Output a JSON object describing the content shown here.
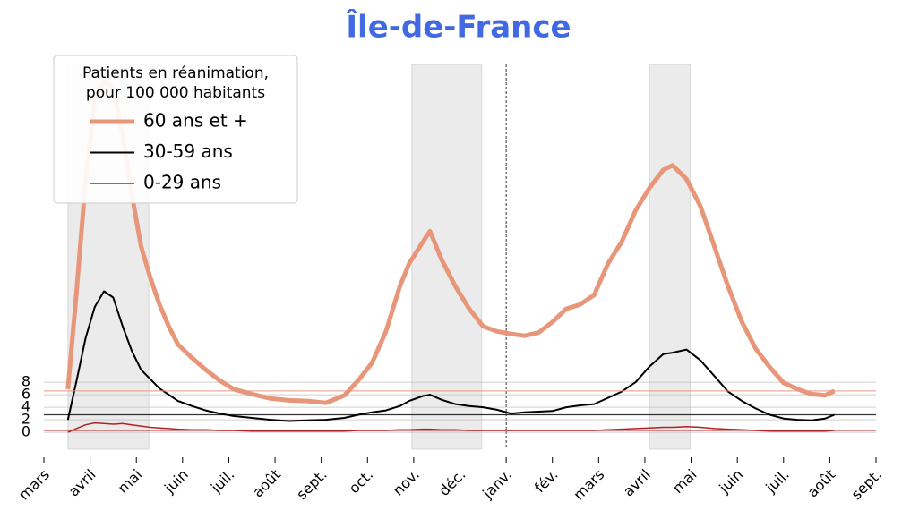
{
  "chart_data": {
    "type": "line",
    "title": "Île-de-France",
    "legend_title": [
      "Patients en réanimation,",
      "pour 100 000 habitants"
    ],
    "legend_position": "upper left",
    "x": [
      0.52,
      0.7,
      0.9,
      1.1,
      1.3,
      1.5,
      1.7,
      1.9,
      2.1,
      2.3,
      2.5,
      2.7,
      2.9,
      3.2,
      3.5,
      3.8,
      4.1,
      4.5,
      4.9,
      5.3,
      5.7,
      6.1,
      6.5,
      6.8,
      7.1,
      7.4,
      7.7,
      7.9,
      8.2,
      8.35,
      8.6,
      8.9,
      9.2,
      9.5,
      9.8,
      10.1,
      10.4,
      10.7,
      11.0,
      11.3,
      11.6,
      11.9,
      12.2,
      12.5,
      12.8,
      13.1,
      13.4,
      13.6,
      13.9,
      14.2,
      14.5,
      14.8,
      15.1,
      15.4,
      15.7,
      16.0,
      16.3,
      16.6,
      16.9,
      17.1
    ],
    "series": [
      {
        "name": "60 ans et +",
        "color": "#e8967a",
        "width": 5,
        "values": [
          6.9,
          21.9,
          40,
          53,
          56,
          55,
          47.6,
          38,
          29.7,
          24.7,
          20.4,
          16.9,
          14,
          11.9,
          10,
          8.3,
          6.9,
          6.1,
          5.4,
          5.1,
          5,
          4.7,
          5.9,
          8.3,
          11.1,
          16.1,
          23.3,
          26.9,
          30.4,
          32.1,
          27.6,
          23.3,
          19.7,
          16.9,
          16.1,
          15.7,
          15.4,
          15.9,
          17.6,
          19.7,
          20.4,
          21.9,
          26.9,
          30.4,
          35.4,
          39,
          41.9,
          42.6,
          40.4,
          36.1,
          29.7,
          23.3,
          17.6,
          13.3,
          10.4,
          7.9,
          6.9,
          6.1,
          5.9,
          6.6
        ]
      },
      {
        "name": "30-59 ans",
        "color": "#000000",
        "width": 2,
        "values": [
          2,
          8,
          15,
          20,
          22.5,
          21.5,
          17,
          13,
          10,
          8.5,
          7,
          6,
          5,
          4.2,
          3.5,
          3,
          2.6,
          2.3,
          2,
          1.8,
          1.9,
          2,
          2.3,
          2.8,
          3.2,
          3.5,
          4.2,
          5,
          5.8,
          6,
          5.2,
          4.5,
          4.2,
          4,
          3.6,
          3,
          3.2,
          3.3,
          3.4,
          4,
          4.3,
          4.5,
          5.5,
          6.5,
          8,
          10.5,
          12.5,
          12.7,
          13.2,
          11.5,
          9,
          6.5,
          5,
          3.8,
          2.8,
          2.2,
          2,
          1.9,
          2.2,
          2.8
        ]
      },
      {
        "name": "0-29 ans",
        "color": "#b22222",
        "width": 1.5,
        "values": [
          0,
          0.6,
          1.2,
          1.5,
          1.4,
          1.3,
          1.4,
          1.2,
          1,
          0.8,
          0.7,
          0.6,
          0.5,
          0.4,
          0.4,
          0.3,
          0.3,
          0.2,
          0.2,
          0.2,
          0.2,
          0.2,
          0.2,
          0.3,
          0.3,
          0.3,
          0.4,
          0.4,
          0.5,
          0.5,
          0.4,
          0.4,
          0.3,
          0.3,
          0.3,
          0.3,
          0.3,
          0.3,
          0.3,
          0.3,
          0.3,
          0.3,
          0.4,
          0.5,
          0.6,
          0.7,
          0.8,
          0.8,
          0.9,
          0.8,
          0.6,
          0.5,
          0.4,
          0.3,
          0.2,
          0.2,
          0.2,
          0.2,
          0.2,
          0.3
        ]
      }
    ],
    "xlim": [
      0,
      18
    ],
    "xticks": [
      {
        "value": 0,
        "label": "mars"
      },
      {
        "value": 1,
        "label": "avril"
      },
      {
        "value": 2,
        "label": "mai"
      },
      {
        "value": 3,
        "label": "juin"
      },
      {
        "value": 4,
        "label": "juil."
      },
      {
        "value": 5,
        "label": "août"
      },
      {
        "value": 6,
        "label": "sept."
      },
      {
        "value": 7,
        "label": "oct."
      },
      {
        "value": 8,
        "label": "nov."
      },
      {
        "value": 9,
        "label": "déc."
      },
      {
        "value": 10,
        "label": "janv."
      },
      {
        "value": 11,
        "label": "fév."
      },
      {
        "value": 12,
        "label": "mars"
      },
      {
        "value": 13,
        "label": "avril"
      },
      {
        "value": 14,
        "label": "mai"
      },
      {
        "value": 15,
        "label": "juin"
      },
      {
        "value": 16,
        "label": "juil."
      },
      {
        "value": 17,
        "label": "août"
      },
      {
        "value": 18,
        "label": "sept."
      }
    ],
    "ylim": [
      -2.7,
      58.7
    ],
    "yticks": [
      0,
      2,
      4,
      6,
      8
    ],
    "grid": true,
    "shaded_ranges": [
      [
        0.52,
        2.27
      ],
      [
        7.96,
        9.47
      ],
      [
        13.1,
        13.98
      ]
    ],
    "vline": 10
  }
}
